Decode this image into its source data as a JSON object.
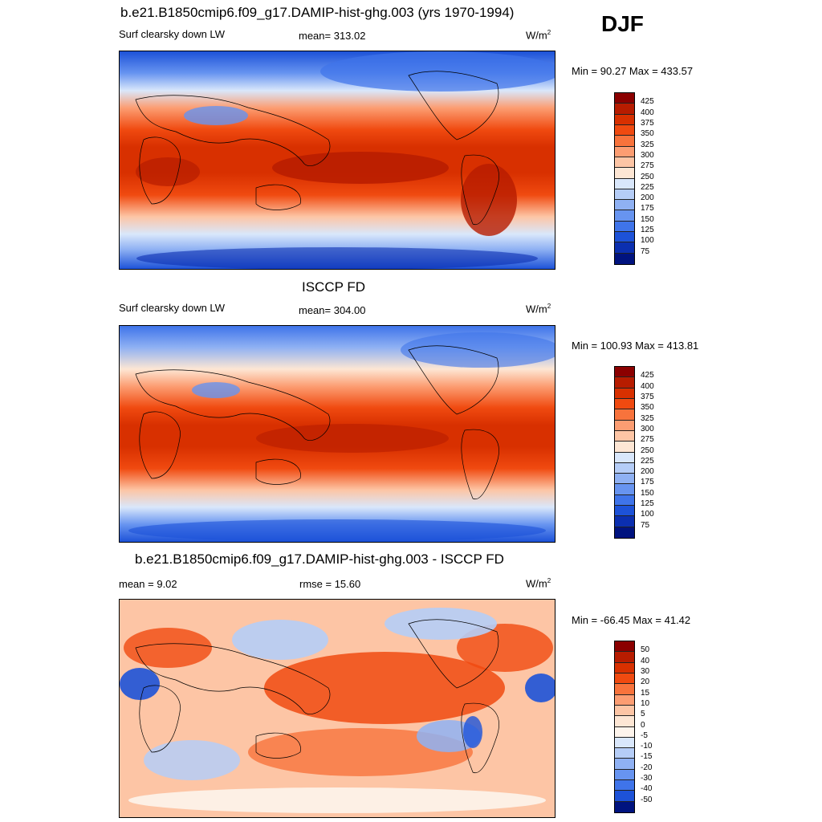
{
  "season": "DJF",
  "panels": [
    {
      "title": "b.e21.B1850cmip6.f09_g17.DAMIP-hist-ghg.003 (yrs 1970-1994)",
      "left_label": "Surf clearsky down LW",
      "center_label": "mean= 313.02",
      "units": "W/m",
      "units_sup": "2",
      "minmax": "Min =  90.27 Max = 433.57",
      "colorbar": {
        "labels": [
          "425",
          "400",
          "375",
          "350",
          "325",
          "300",
          "275",
          "250",
          "225",
          "200",
          "175",
          "150",
          "125",
          "100",
          "75"
        ],
        "colors": [
          "#8b0000",
          "#b71c00",
          "#d83000",
          "#f04a10",
          "#f8733c",
          "#fc9d72",
          "#fdc5a5",
          "#fde6d4",
          "#d9e7fb",
          "#b5cdf7",
          "#8fb1f3",
          "#6794f0",
          "#3f74ea",
          "#1d52d8",
          "#0b2fb0",
          "#00137f"
        ]
      }
    },
    {
      "title": "ISCCP FD",
      "left_label": "Surf clearsky down LW",
      "center_label": "mean= 304.00",
      "units": "W/m",
      "units_sup": "2",
      "minmax": "Min = 100.93 Max = 413.81",
      "colorbar": {
        "labels": [
          "425",
          "400",
          "375",
          "350",
          "325",
          "300",
          "275",
          "250",
          "225",
          "200",
          "175",
          "150",
          "125",
          "100",
          "75"
        ],
        "colors": [
          "#8b0000",
          "#b71c00",
          "#d83000",
          "#f04a10",
          "#f8733c",
          "#fc9d72",
          "#fdc5a5",
          "#fde6d4",
          "#d9e7fb",
          "#b5cdf7",
          "#8fb1f3",
          "#6794f0",
          "#3f74ea",
          "#1d52d8",
          "#0b2fb0",
          "#00137f"
        ]
      }
    },
    {
      "title": "b.e21.B1850cmip6.f09_g17.DAMIP-hist-ghg.003 - ISCCP FD",
      "left_label": "mean =   9.02",
      "center_label": "rmse =  15.60",
      "units": "W/m",
      "units_sup": "2",
      "minmax": "Min = -66.45 Max =  41.42",
      "colorbar": {
        "labels": [
          "50",
          "40",
          "30",
          "20",
          "15",
          "10",
          "5",
          "0",
          "-5",
          "-10",
          "-15",
          "-20",
          "-30",
          "-40",
          "-50"
        ],
        "colors": [
          "#8b0000",
          "#b71c00",
          "#d83000",
          "#f04a10",
          "#f8733c",
          "#fc9d72",
          "#fdc5a5",
          "#fde6d4",
          "#fdf4ec",
          "#d9e7fb",
          "#b5cdf7",
          "#8fb1f3",
          "#6794f0",
          "#3f74ea",
          "#1d52d8",
          "#00137f"
        ]
      }
    }
  ]
}
